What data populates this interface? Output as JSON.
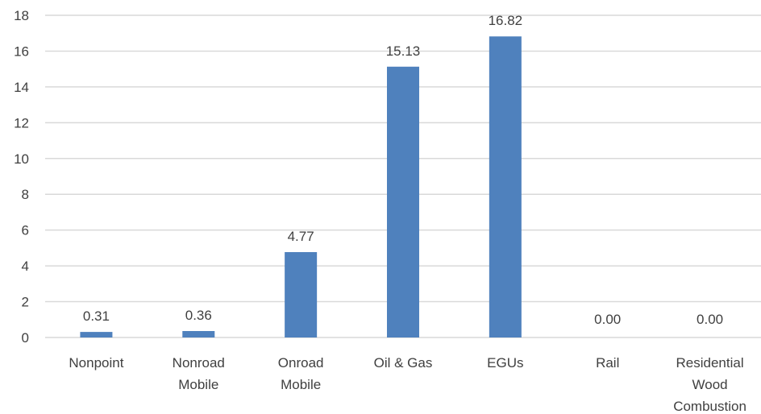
{
  "chart_data": {
    "type": "bar",
    "title": "",
    "xlabel": "",
    "ylabel": "",
    "categories": [
      [
        "Nonpoint"
      ],
      [
        "Nonroad",
        "Mobile"
      ],
      [
        "Onroad",
        "Mobile"
      ],
      [
        "Oil & Gas"
      ],
      [
        "EGUs"
      ],
      [
        "Rail"
      ],
      [
        "Residential",
        "Wood",
        "Combustion"
      ]
    ],
    "values": [
      0.31,
      0.36,
      4.77,
      15.13,
      16.82,
      0.0,
      0.0
    ],
    "data_labels": [
      "0.31",
      "0.36",
      "4.77",
      "15.13",
      "16.82",
      "0.00",
      "0.00"
    ],
    "yticks": [
      "0",
      "2",
      "4",
      "6",
      "8",
      "10",
      "12",
      "14",
      "16",
      "18"
    ],
    "ylim": [
      0,
      18
    ],
    "grid": true,
    "legend": "none",
    "bar_color": "#4f81bd"
  }
}
